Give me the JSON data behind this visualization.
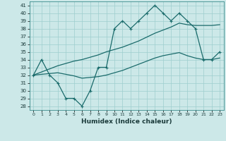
{
  "xlabel": "Humidex (Indice chaleur)",
  "background_color": "#cce8e8",
  "grid_color": "#9ecece",
  "line_color": "#1a6b6b",
  "xlim": [
    -0.5,
    23.5
  ],
  "ylim": [
    27.5,
    41.5
  ],
  "xticks": [
    0,
    1,
    2,
    3,
    4,
    5,
    6,
    7,
    8,
    9,
    10,
    11,
    12,
    13,
    14,
    15,
    16,
    17,
    18,
    19,
    20,
    21,
    22,
    23
  ],
  "yticks": [
    28,
    29,
    30,
    31,
    32,
    33,
    34,
    35,
    36,
    37,
    38,
    39,
    40,
    41
  ],
  "humidex": [
    32,
    34,
    32,
    31,
    29,
    29,
    28,
    30,
    33,
    33,
    38,
    39,
    38,
    39,
    40,
    41,
    40,
    39,
    40,
    39,
    38,
    34,
    34,
    35
  ],
  "line_upper": [
    32,
    32.4,
    32.8,
    33.2,
    33.5,
    33.8,
    34.0,
    34.3,
    34.6,
    35.0,
    35.3,
    35.6,
    36.0,
    36.4,
    36.9,
    37.4,
    37.8,
    38.2,
    38.7,
    38.5,
    38.4,
    38.4,
    38.4,
    38.5
  ],
  "line_lower": [
    32,
    32.1,
    32.2,
    32.3,
    32.1,
    31.9,
    31.6,
    31.7,
    31.8,
    32.0,
    32.3,
    32.6,
    33.0,
    33.4,
    33.8,
    34.2,
    34.5,
    34.7,
    34.9,
    34.5,
    34.2,
    34.0,
    34.0,
    34.2
  ]
}
